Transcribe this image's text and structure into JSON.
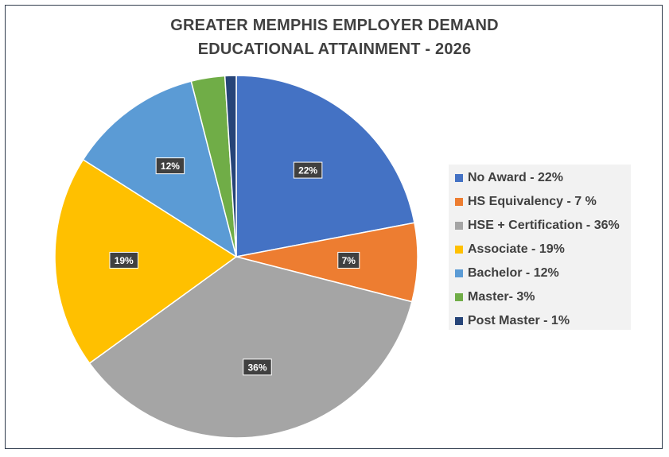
{
  "chart_data": {
    "type": "pie",
    "title": "GREATER MEMPHIS EMPLOYER DEMAND",
    "subtitle": "EDUCATIONAL ATTAINMENT - 2026",
    "legend_position": "right",
    "slices": [
      {
        "legend": "No Award - 22%",
        "label": "22%",
        "value": 22,
        "color": "#4472c4"
      },
      {
        "legend": "HS Equivalency - 7 %",
        "label": "7%",
        "value": 7,
        "color": "#ed7d31"
      },
      {
        "legend": "HSE + Certification - 36%",
        "label": "36%",
        "value": 36,
        "color": "#a5a5a5"
      },
      {
        "legend": "Associate - 19%",
        "label": "19%",
        "value": 19,
        "color": "#ffc000"
      },
      {
        "legend": "Bachelor - 12%",
        "label": "12%",
        "value": 12,
        "color": "#5b9bd5"
      },
      {
        "legend": "Master- 3%",
        "label": "",
        "value": 3,
        "color": "#70ad47"
      },
      {
        "legend": "Post Master - 1%",
        "label": "",
        "value": 1,
        "color": "#264478"
      }
    ]
  }
}
